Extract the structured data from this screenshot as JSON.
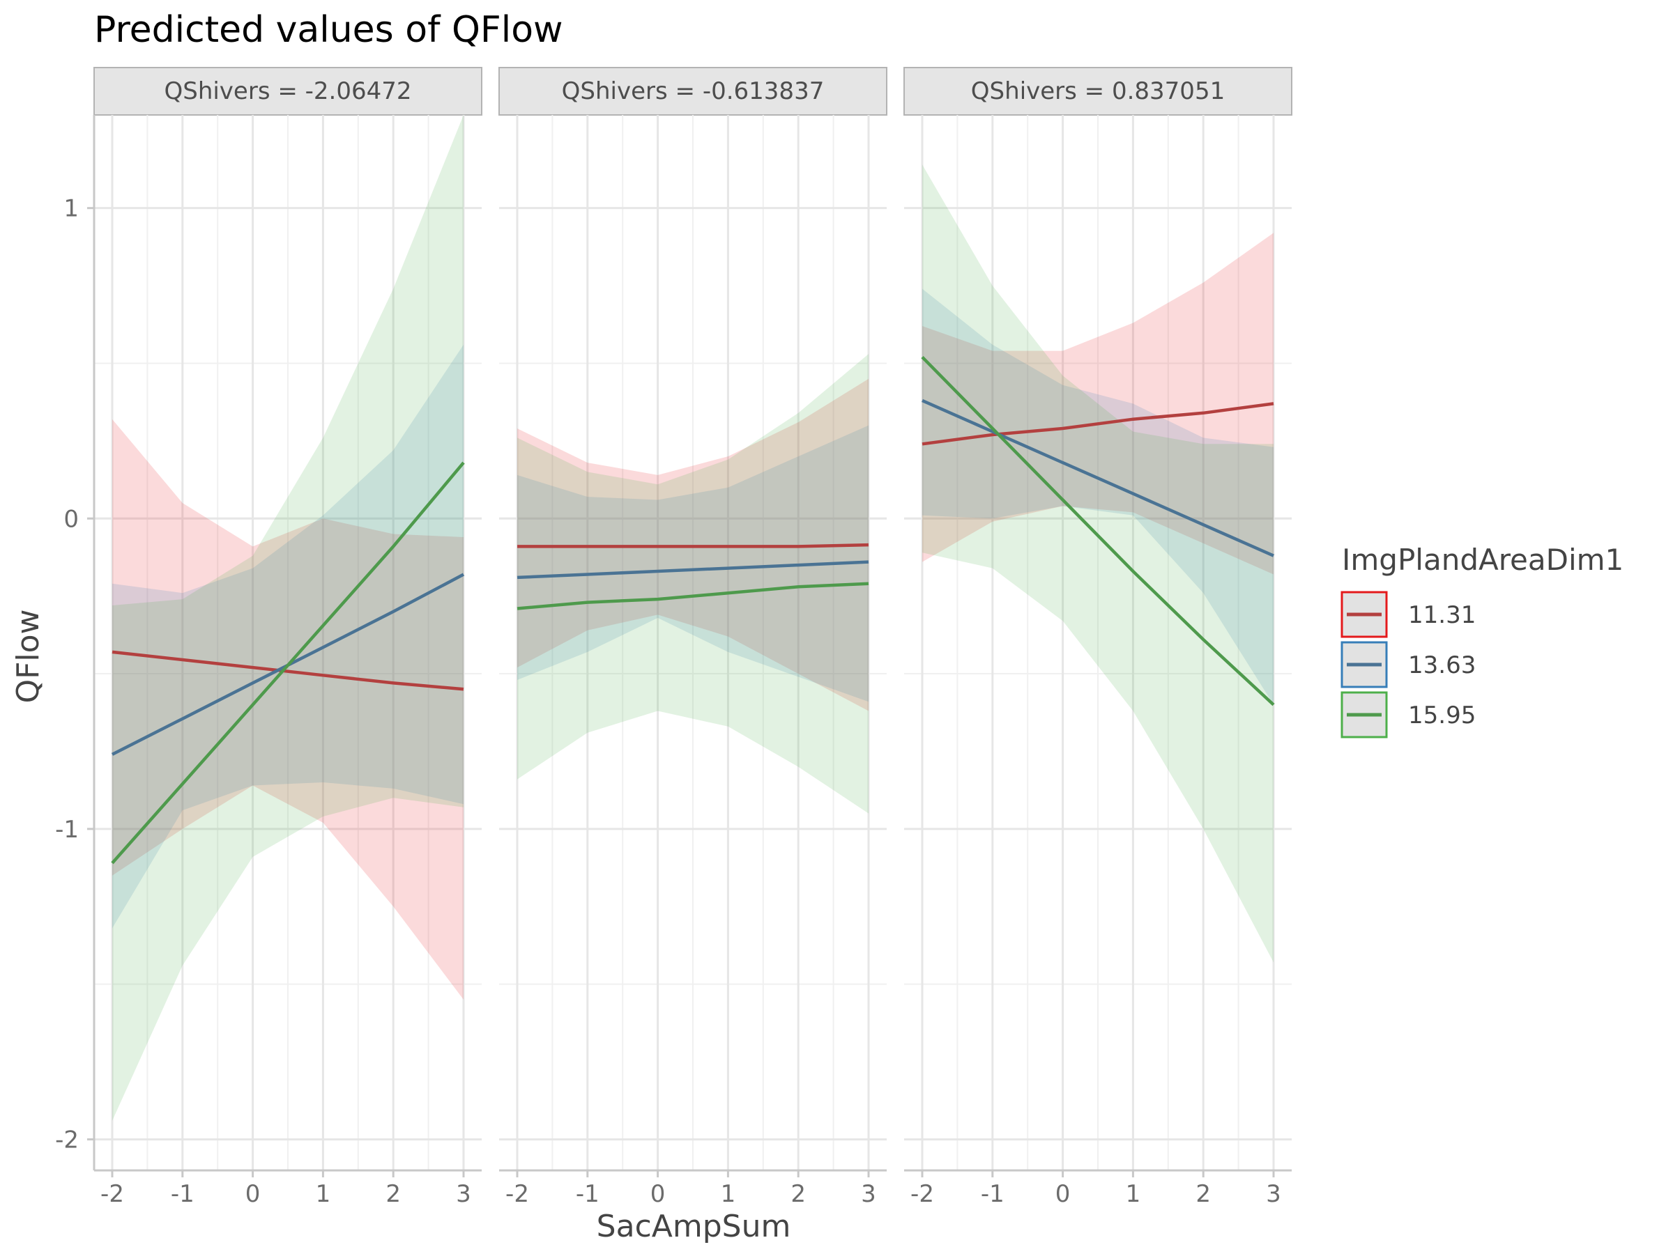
{
  "chart_data": {
    "type": "line",
    "title": "Predicted values of QFlow",
    "xlabel": "SacAmpSum",
    "ylabel": "QFlow",
    "xlim": [
      -2,
      3
    ],
    "ylim": [
      -2,
      1
    ],
    "x_ticks": [
      -2,
      -1,
      0,
      1,
      2,
      3
    ],
    "x_tick_labels": [
      "-2",
      "-1",
      "0",
      "1",
      "2",
      "3"
    ],
    "y_ticks": [
      -2,
      -1,
      0,
      1
    ],
    "y_tick_labels": [
      "-2",
      "-1",
      "0",
      "1"
    ],
    "grid": true,
    "legend": {
      "title": "ImgPlandAreaDim1",
      "position": "right",
      "entries": [
        "11.31",
        "13.63",
        "15.95"
      ]
    },
    "colors": {
      "11.31": "#e41a1c",
      "13.63": "#377eb8",
      "15.95": "#4daf4a"
    },
    "line_colors": {
      "11.31": "#b3403f",
      "13.63": "#4a7394",
      "15.95": "#4e9a4c"
    },
    "panels": [
      {
        "label": "QShivers = -2.06472",
        "x": [
          -2,
          -1,
          0,
          1,
          2,
          3
        ],
        "series": [
          {
            "name": "11.31",
            "values": [
              -0.43,
              -0.455,
              -0.48,
              -0.505,
              -0.53,
              -0.55
            ],
            "lower": [
              -1.15,
              -1.0,
              -0.86,
              -0.98,
              -1.25,
              -1.55
            ],
            "upper": [
              0.32,
              0.05,
              -0.09,
              0.0,
              -0.05,
              -0.06
            ]
          },
          {
            "name": "13.63",
            "values": [
              -0.76,
              -0.645,
              -0.53,
              -0.415,
              -0.3,
              -0.18
            ],
            "lower": [
              -1.32,
              -0.94,
              -0.86,
              -0.85,
              -0.87,
              -0.92
            ],
            "upper": [
              -0.21,
              -0.24,
              -0.16,
              0.01,
              0.22,
              0.56
            ]
          },
          {
            "name": "15.95",
            "values": [
              -1.11,
              -0.855,
              -0.6,
              -0.345,
              -0.09,
              0.18
            ],
            "lower": [
              -1.94,
              -1.44,
              -1.09,
              -0.96,
              -0.9,
              -0.93
            ],
            "upper": [
              -0.28,
              -0.26,
              -0.12,
              0.26,
              0.74,
              1.3
            ]
          }
        ]
      },
      {
        "label": "QShivers = -0.613837",
        "x": [
          -2,
          -1,
          0,
          1,
          2,
          3
        ],
        "series": [
          {
            "name": "11.31",
            "values": [
              -0.09,
              -0.09,
              -0.09,
              -0.09,
              -0.09,
              -0.085
            ],
            "lower": [
              -0.48,
              -0.36,
              -0.31,
              -0.38,
              -0.5,
              -0.62
            ],
            "upper": [
              0.29,
              0.18,
              0.14,
              0.2,
              0.31,
              0.45
            ]
          },
          {
            "name": "13.63",
            "values": [
              -0.19,
              -0.18,
              -0.17,
              -0.16,
              -0.15,
              -0.14
            ],
            "lower": [
              -0.52,
              -0.43,
              -0.32,
              -0.43,
              -0.51,
              -0.59
            ],
            "upper": [
              0.14,
              0.07,
              0.06,
              0.1,
              0.2,
              0.3
            ]
          },
          {
            "name": "15.95",
            "values": [
              -0.29,
              -0.27,
              -0.26,
              -0.24,
              -0.22,
              -0.21
            ],
            "lower": [
              -0.84,
              -0.69,
              -0.62,
              -0.67,
              -0.8,
              -0.95
            ],
            "upper": [
              0.26,
              0.15,
              0.11,
              0.19,
              0.34,
              0.53
            ]
          }
        ]
      },
      {
        "label": "QShivers = 0.837051",
        "x": [
          -2,
          -1,
          0,
          1,
          2,
          3
        ],
        "series": [
          {
            "name": "11.31",
            "values": [
              0.24,
              0.27,
              0.29,
              0.32,
              0.34,
              0.37
            ],
            "lower": [
              -0.14,
              -0.01,
              0.04,
              0.02,
              -0.08,
              -0.18
            ],
            "upper": [
              0.62,
              0.54,
              0.54,
              0.63,
              0.76,
              0.92
            ]
          },
          {
            "name": "13.63",
            "values": [
              0.38,
              0.28,
              0.18,
              0.08,
              -0.02,
              -0.12
            ],
            "lower": [
              0.01,
              0.0,
              0.04,
              0.01,
              -0.24,
              -0.6
            ],
            "upper": [
              0.74,
              0.56,
              0.43,
              0.37,
              0.26,
              0.23
            ]
          },
          {
            "name": "15.95",
            "values": [
              0.52,
              0.29,
              0.06,
              -0.17,
              -0.39,
              -0.6
            ],
            "lower": [
              -0.11,
              -0.16,
              -0.33,
              -0.62,
              -1.0,
              -1.43
            ],
            "upper": [
              1.14,
              0.75,
              0.46,
              0.28,
              0.24,
              0.24
            ]
          }
        ]
      }
    ]
  }
}
